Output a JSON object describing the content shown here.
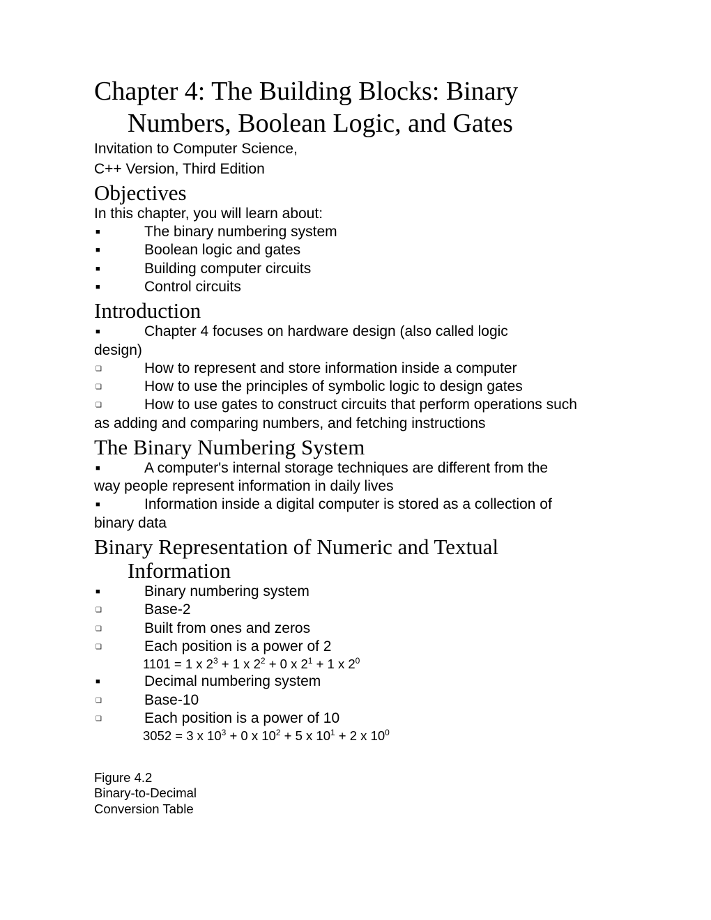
{
  "title_line1": "Chapter 4: The Building Blocks: Binary",
  "title_line2": "Numbers, Boolean Logic, and Gates",
  "subtitle_line1": "Invitation to Computer Science,",
  "subtitle_line2": "C++ Version, Third Edition",
  "objectives": {
    "heading": "Objectives",
    "lead": "In this chapter, you will learn about:",
    "items": [
      "The binary numbering system",
      "Boolean logic and gates",
      "Building computer circuits",
      "Control circuits"
    ]
  },
  "introduction": {
    "heading": "Introduction",
    "item1": "Chapter 4 focuses on hardware design (also called logic",
    "item1_wrap": "design)",
    "item2": "How to represent and store information inside a computer",
    "item3": "How to use the principles of symbolic logic to design gates",
    "item4": "How to use gates to construct circuits that perform operations such",
    "item4_wrap": "as adding and comparing numbers, and fetching instructions"
  },
  "binary_system": {
    "heading": "The Binary Numbering System",
    "item1": "A computer's internal storage techniques are different from the",
    "item1_wrap": "way people represent information in daily lives",
    "item2": "Information inside a digital computer is stored as a collection of",
    "item2_wrap": "binary data"
  },
  "binary_rep": {
    "heading_line1": "Binary Representation of Numeric and Textual",
    "heading_line2": "Information",
    "i1": "Binary numbering system",
    "i2": "Base-2",
    "i3": "Built from ones and zeros",
    "i4": "Each position is a power of 2",
    "formula1_pre": "1101 = 1 x 2",
    "formula1_e1": "3",
    "formula1_m1": " + 1 x 2",
    "formula1_e2": "2",
    "formula1_m2": " + 0 x 2",
    "formula1_e3": "1",
    "formula1_m3": " + 1 x 2",
    "formula1_e4": "0",
    "i5": "Decimal numbering system",
    "i6": "Base-10",
    "i7": "Each position is a power of 10",
    "formula2_pre": "3052 = 3 x 10",
    "formula2_e1": "3",
    "formula2_m1": " + 0 x 10",
    "formula2_e2": "2",
    "formula2_m2": " + 5 x 10",
    "formula2_e3": "1",
    "formula2_m3": " + 2 x 10",
    "formula2_e4": "0"
  },
  "figure": {
    "line1": "Figure 4.2",
    "line2": "Binary-to-Decimal",
    "line3": "Conversion Table"
  }
}
